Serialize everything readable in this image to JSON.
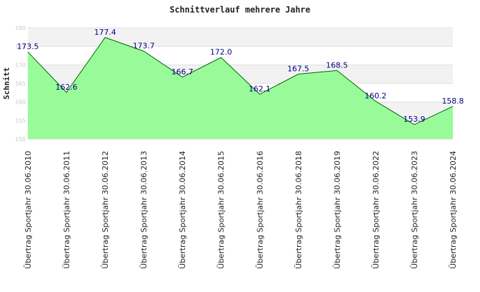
{
  "chart_data": {
    "type": "area",
    "title": "Schnittverlauf mehrere Jahre",
    "ylabel": "Schnitt",
    "xlabel": "",
    "ylim": [
      150,
      180
    ],
    "yticks": [
      "150",
      "155",
      "160",
      "165",
      "170",
      "175",
      "180"
    ],
    "grid": true,
    "categories": [
      "Übertrag Sportjahr 30.06.2010",
      "Übertrag Sportjahr 30.06.2011",
      "Übertrag Sportjahr 30.06.2012",
      "Übertrag Sportjahr 30.06.2013",
      "Übertrag Sportjahr 30.06.2014",
      "Übertrag Sportjahr 30.06.2015",
      "Übertrag Sportjahr 30.06.2016",
      "Übertrag Sportjahr 30.06.2018",
      "Übertrag Sportjahr 30.06.2019",
      "Übertrag Sportjahr 30.06.2022",
      "Übertrag Sportjahr 30.06.2023",
      "Übertrag Sportjahr 30.06.2024"
    ],
    "values": [
      173.5,
      162.6,
      177.4,
      173.7,
      166.7,
      172.0,
      162.1,
      167.5,
      168.5,
      160.2,
      153.9,
      158.8
    ],
    "labels": [
      "173.5",
      "162.6",
      "177.4",
      "173.7",
      "166.7",
      "172.0",
      "162.1",
      "167.5",
      "168.5",
      "160.2",
      "153.9",
      "158.8"
    ],
    "colors": {
      "fill": "#99fa99",
      "line": "#006400",
      "label": "#000080",
      "band": "#f2f2f2",
      "grid": "#e0e0e0"
    }
  }
}
